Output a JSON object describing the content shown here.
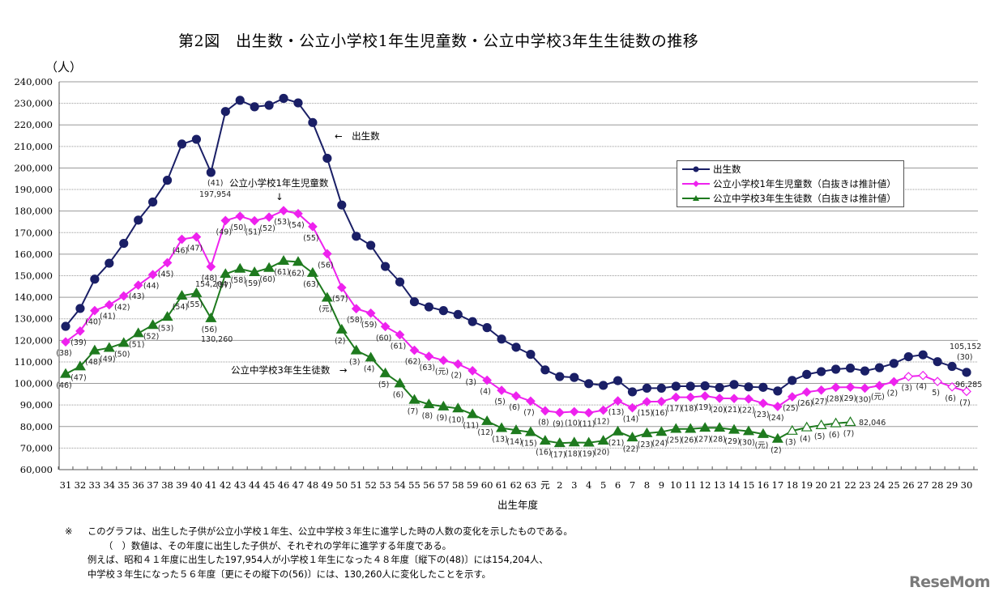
{
  "title": "第2図　出生数・公立小学校1年生児童数・公立中学校3年生生徒数の推移",
  "unit_label": "（人）",
  "x_axis_title": "出生年度",
  "legend": [
    {
      "name": "出生数",
      "color": "#1a1f66",
      "marker": "circle"
    },
    {
      "name": "公立小学校1年生児童数（白抜きは推計値）",
      "color": "#ee22ee",
      "marker": "diamond"
    },
    {
      "name": "公立中学校3年生生徒数（白抜きは推計値）",
      "color": "#1e7a1e",
      "marker": "triangle"
    }
  ],
  "annotations": {
    "births_arrow": "←　出生数",
    "elem_label": "公立小学校1年生児童数",
    "elem_arrow": "↓",
    "mid_label": "公立中学校3年生生徒数　→",
    "births_41_year": "(41)",
    "births_41_value": "197,954",
    "elem_48_value": "154,204",
    "mid_56_value": "130,260",
    "births_last_value": "105,152",
    "births_last_year": "(30)",
    "elem_last_value": "96,285",
    "mid_last_value": "82,046"
  },
  "notes": {
    "mark": "※",
    "line1": "このグラフは、出生した子供が公立小学校１年生、公立中学校３年生に進学した時の人数の変化を示したものである。",
    "line2": "（　）数値は、その年度に出生した子供が、それぞれの学年に進学する年度である。",
    "line3": "例えば、昭和４１年度に出生した197,954人が小学校１年生になった４８年度〔縦下の(48)〕には154,204人、",
    "line4": "中学校３年生になった５６年度〔更にその縦下の(56)〕には、130,260人に変化したことを示す。"
  },
  "watermark": "ReseMom",
  "chart_data": {
    "type": "line",
    "title": "第2図　出生数・公立小学校1年生児童数・公立中学校3年生生徒数の推移",
    "xlabel": "出生年度",
    "ylabel": "（人）",
    "ylim": [
      60000,
      240000
    ],
    "ytick_step": 10000,
    "yticks": [
      "60,000",
      "70,000",
      "80,000",
      "90,000",
      "100,000",
      "110,000",
      "120,000",
      "130,000",
      "140,000",
      "150,000",
      "160,000",
      "170,000",
      "180,000",
      "190,000",
      "200,000",
      "210,000",
      "220,000",
      "230,000",
      "240,000"
    ],
    "grid": true,
    "legend_position": "top-right",
    "categories": [
      "31",
      "32",
      "33",
      "34",
      "35",
      "36",
      "37",
      "38",
      "39",
      "40",
      "41",
      "42",
      "43",
      "44",
      "45",
      "46",
      "47",
      "48",
      "49",
      "50",
      "51",
      "52",
      "53",
      "54",
      "55",
      "56",
      "57",
      "58",
      "59",
      "60",
      "61",
      "62",
      "63",
      "元",
      "2",
      "3",
      "4",
      "5",
      "6",
      "7",
      "8",
      "9",
      "10",
      "11",
      "12",
      "13",
      "14",
      "15",
      "16",
      "17",
      "18",
      "19",
      "20",
      "21",
      "22",
      "23",
      "24",
      "25",
      "26",
      "27",
      "28",
      "29",
      "30"
    ],
    "series": [
      {
        "name": "出生数",
        "color": "#1a1f66",
        "marker": "circle",
        "values": [
          126500,
          134800,
          148400,
          155800,
          165000,
          175800,
          184200,
          194300,
          211100,
          213300,
          197954,
          226200,
          231400,
          228400,
          229100,
          232300,
          230200,
          221100,
          204500,
          182800,
          168300,
          164100,
          154300,
          147100,
          137900,
          135500,
          133800,
          132000,
          128700,
          125900,
          120600,
          116800,
          113500,
          106300,
          103200,
          102800,
          99900,
          99100,
          101300,
          96100,
          97800,
          97800,
          98700,
          98700,
          98900,
          98100,
          99500,
          98400,
          98200,
          96500,
          101400,
          104200,
          105500,
          106600,
          107100,
          105800,
          107300,
          109300,
          112400,
          113300,
          110100,
          107900,
          105152
        ],
        "labels": [
          "",
          "",
          "",
          "",
          "",
          "",
          "",
          "",
          "",
          "",
          "(41)",
          "",
          "",
          "",
          "",
          "",
          "",
          "",
          "",
          "",
          "",
          "",
          "",
          "",
          "",
          "",
          "",
          "",
          "",
          "",
          "",
          "",
          "",
          "",
          "",
          "",
          "",
          "",
          "",
          "",
          "",
          "",
          "",
          "",
          "",
          "",
          "",
          "",
          "",
          "",
          "",
          "",
          "",
          "",
          "",
          "",
          "",
          "",
          "",
          "",
          "",
          "",
          "(30)"
        ],
        "estimated_from_index": null
      },
      {
        "name": "公立小学校1年生児童数（白抜きは推計値）",
        "color": "#ee22ee",
        "marker": "diamond",
        "values": [
          119300,
          124300,
          133800,
          136500,
          140600,
          145600,
          150500,
          156000,
          166900,
          168000,
          154204,
          175600,
          177600,
          175500,
          177200,
          180200,
          178800,
          172800,
          160200,
          144500,
          134700,
          132600,
          126400,
          122600,
          115400,
          112600,
          110700,
          109000,
          105900,
          101500,
          96800,
          94200,
          91800,
          87300,
          86500,
          86900,
          86400,
          87600,
          91900,
          88700,
          91500,
          91600,
          93600,
          93600,
          94200,
          93100,
          93000,
          92800,
          90800,
          89300,
          93800,
          96000,
          96900,
          98200,
          98300,
          97800,
          99000,
          100800,
          103200,
          103700,
          100900,
          98400,
          96285
        ],
        "labels": [
          "(38)",
          "(39)",
          "(40)",
          "(41)",
          "(42)",
          "(43)",
          "(44)",
          "(45)",
          "(46)",
          "(47)",
          "(48)",
          "(49)",
          "(50)",
          "(51)",
          "(52)",
          "(53)",
          "(54)",
          "(55)",
          "(56)",
          "(57)",
          "(58)",
          "(59)",
          "(60)",
          "(61)",
          "(62)",
          "(63)",
          "(元)",
          "(2)",
          "(3)",
          "(4)",
          "(5)",
          "(6)",
          "(7)",
          "(8)",
          "(9)",
          "(10)",
          "(11)",
          "(12)",
          "(13)",
          "(14)",
          "(15)",
          "(16)",
          "(17)",
          "(18)",
          "(19)",
          "(20)",
          "(21)",
          "(22)",
          "(23)",
          "(24)",
          "(25)",
          "(26)",
          "(27)",
          "(28)",
          "(29)",
          "(30)",
          "(元)",
          "(2)",
          "(3)",
          "(4)",
          "5)",
          "(6)",
          "(7)"
        ],
        "estimated_from_index": 58
      },
      {
        "name": "公立中学校3年生生徒数（白抜きは推計値）",
        "color": "#1e7a1e",
        "marker": "triangle",
        "values": [
          104400,
          107900,
          115300,
          116500,
          118800,
          123300,
          127100,
          130900,
          140700,
          141900,
          130260,
          150800,
          153200,
          151600,
          153600,
          156900,
          156400,
          151300,
          139800,
          125000,
          115300,
          112000,
          104700,
          100000,
          92400,
          90300,
          89300,
          88400,
          85700,
          82500,
          79300,
          78300,
          77400,
          73400,
          72300,
          72600,
          72500,
          73400,
          77700,
          74900,
          76900,
          77500,
          78900,
          78900,
          79400,
          79400,
          78500,
          77800,
          76500,
          74300,
          78000,
          79600,
          80600,
          81500,
          82046
        ],
        "labels": [
          "(46)",
          "(47)",
          "(48)",
          "(49)",
          "(50)",
          "(51)",
          "(52)",
          "(53)",
          "(54)",
          "(55)",
          "(56)",
          "(57)",
          "(58)",
          "(59)",
          "(60)",
          "(61)",
          "(62)",
          "(63)",
          "(元)",
          "(2)",
          "(3)",
          "(4)",
          "(5)",
          "(6)",
          "(7)",
          "(8)",
          "(9)",
          "(10)",
          "(11)",
          "(12)",
          "(13)",
          "(14)",
          "(15)",
          "(16)",
          "(17)",
          "(18)",
          "(19)",
          "(20)",
          "(21)",
          "(22)",
          "(23)",
          "(24)",
          "(25)",
          "(26)",
          "(27)",
          "(28)",
          "(29)",
          "(30)",
          "(元)",
          "(2)",
          "(3)",
          "(4)",
          "(5)",
          "(6)",
          "(7)"
        ],
        "estimated_from_index": 50
      }
    ]
  }
}
